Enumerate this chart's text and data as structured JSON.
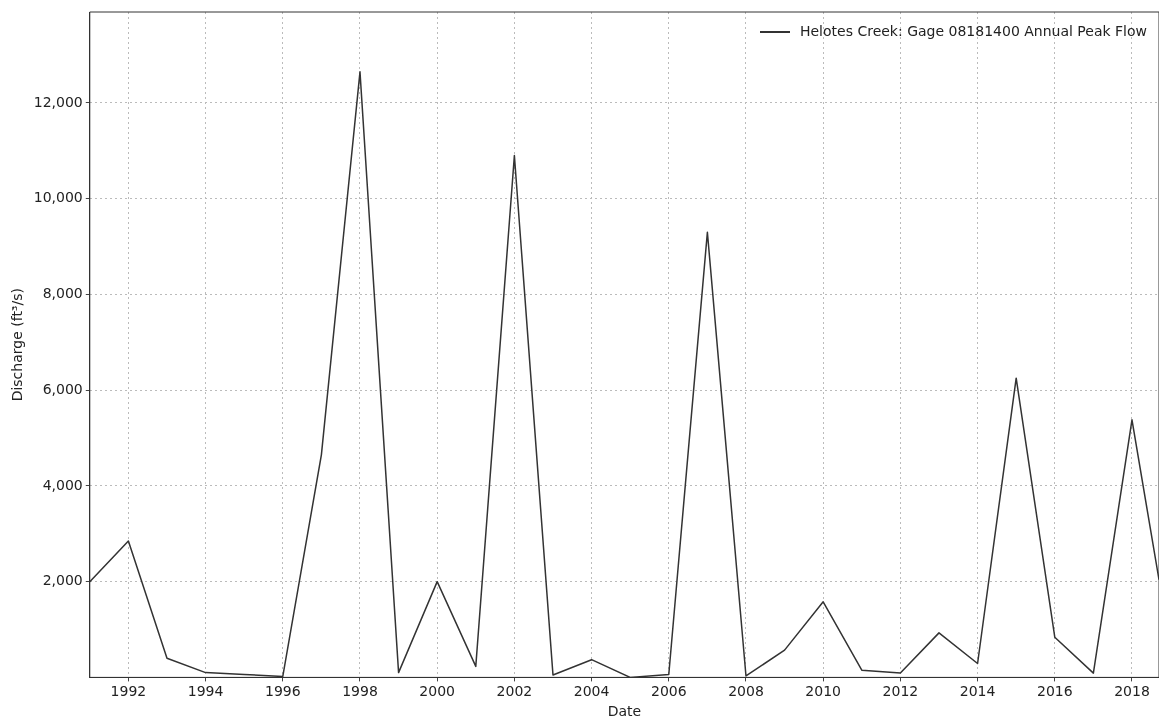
{
  "chart_data": {
    "type": "line",
    "xlabel": "Date",
    "ylabel": "Discharge (ft³/s)",
    "x": [
      1991,
      1992,
      1993,
      1994,
      1995,
      1996,
      1997,
      1998,
      1999,
      2000,
      2001,
      2002,
      2003,
      2004,
      2005,
      2006,
      2007,
      2008,
      2009,
      2010,
      2011,
      2012,
      2013,
      2014,
      2015,
      2016,
      2017,
      2018,
      2018.7
    ],
    "series": [
      {
        "name": "Helotes Creek: Gage 08181400 Annual Peak Flow",
        "color": "#333333",
        "values": [
          2000,
          2850,
          400,
          100,
          60,
          20,
          4650,
          12650,
          100,
          2000,
          230,
          10900,
          50,
          370,
          0,
          60,
          9300,
          30,
          570,
          1580,
          150,
          90,
          930,
          290,
          6250,
          840,
          90,
          5380,
          2040
        ]
      }
    ],
    "xlim": [
      1991,
      2018.7
    ],
    "xticks": [
      1992,
      1994,
      1996,
      1998,
      2000,
      2002,
      2004,
      2006,
      2008,
      2010,
      2012,
      2014,
      2016,
      2018
    ],
    "ylim": [
      0,
      13900
    ],
    "yticks": [
      {
        "value": 2000,
        "label": "2,000"
      },
      {
        "value": 4000,
        "label": "4,000"
      },
      {
        "value": 6000,
        "label": "6,000"
      },
      {
        "value": 8000,
        "label": "8,000"
      },
      {
        "value": 10000,
        "label": "10,000"
      },
      {
        "value": 12000,
        "label": "12,000"
      }
    ],
    "grid": true,
    "legend": "top right",
    "marker": "none",
    "line_style": "solid"
  }
}
